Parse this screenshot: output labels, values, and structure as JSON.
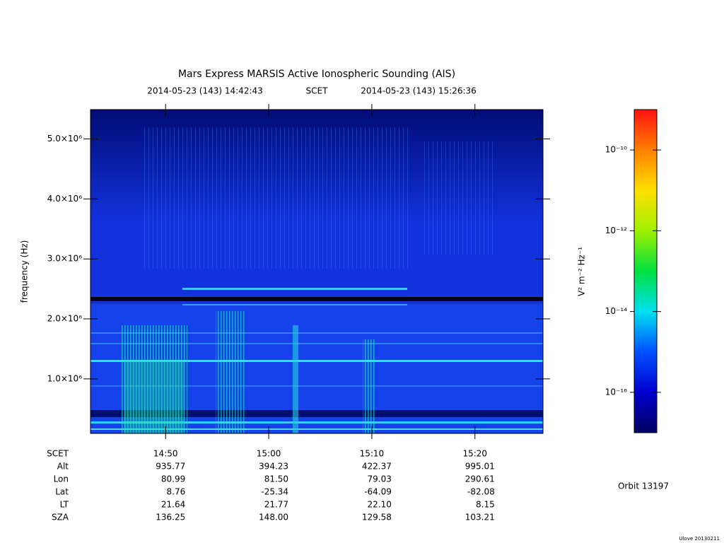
{
  "chart_data": {
    "type": "spectrogram",
    "title": "Mars Express MARSIS Active Ionospheric Sounding (AIS)",
    "subtitle_start": "2014-05-23 (143) 14:42:43",
    "subtitle_mid": "SCET",
    "subtitle_end": "2014-05-23 (143) 15:26:36",
    "ylabel": "frequency (Hz)",
    "xlim": [
      "14:42:43",
      "15:26:36"
    ],
    "xticks": [
      "14:50",
      "15:00",
      "15:10",
      "15:20"
    ],
    "ylim": [
      90000,
      5490000
    ],
    "yticks": [
      {
        "value": 1000000,
        "label": "1.0×10⁶"
      },
      {
        "value": 2000000,
        "label": "2.0×10⁶"
      },
      {
        "value": 3000000,
        "label": "3.0×10⁶"
      },
      {
        "value": 4000000,
        "label": "4.0×10⁶"
      },
      {
        "value": 5000000,
        "label": "5.0×10⁶"
      }
    ],
    "colorbar": {
      "label": "V² m⁻² Hz⁻¹",
      "log_scale": true,
      "zlim": [
        1e-17,
        1e-09
      ],
      "zticks": [
        {
          "value": 1e-16,
          "label": "10⁻¹⁶"
        },
        {
          "value": 1e-14,
          "label": "10⁻¹⁴"
        },
        {
          "value": 1e-12,
          "label": "10⁻¹²"
        },
        {
          "value": 1e-10,
          "label": "10⁻¹⁰"
        }
      ],
      "colormap": [
        "#000060",
        "#0000d0",
        "#0050ff",
        "#00e0f0",
        "#00e040",
        "#a0f000",
        "#ffe000",
        "#ff8000",
        "#ff1010"
      ]
    },
    "ephemeris_header": "SCET",
    "ephemeris": [
      {
        "label": "Alt",
        "values": [
          "935.77",
          "394.23",
          "422.37",
          "995.01"
        ]
      },
      {
        "label": "Lon",
        "values": [
          "80.99",
          "81.50",
          "79.03",
          "290.61"
        ]
      },
      {
        "label": "Lat",
        "values": [
          "8.76",
          "-25.34",
          "-64.09",
          "-82.08"
        ]
      },
      {
        "label": "LT",
        "values": [
          "21.64",
          "21.77",
          "22.10",
          "8.15"
        ]
      },
      {
        "label": "SZA",
        "values": [
          "136.25",
          "148.00",
          "129.58",
          "103.21"
        ]
      }
    ],
    "orbit": "Orbit 13197",
    "footer": "Ulove 20130211"
  }
}
